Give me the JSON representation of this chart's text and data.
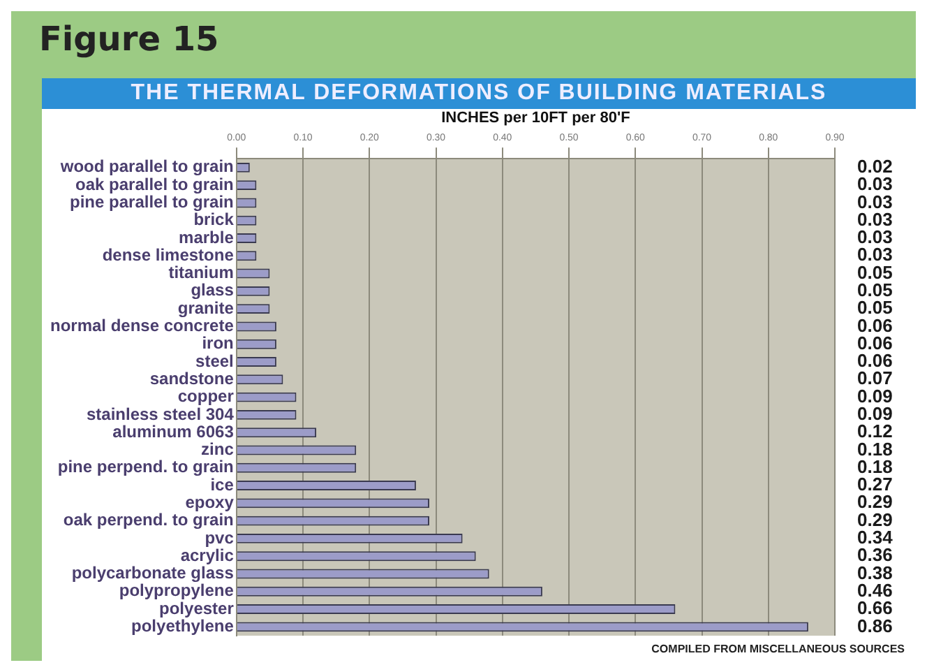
{
  "chart_data": {
    "type": "bar",
    "orientation": "horizontal",
    "title": "Figure 15",
    "subtitle": "THE THERMAL DEFORMATIONS OF BUILDING MATERIALS",
    "xlabel": "INCHES per 10FT per 80'F",
    "categories": [
      "wood parallel to grain",
      "oak parallel to grain",
      "pine parallel to grain",
      "brick",
      "marble",
      "dense limestone",
      "titanium",
      "glass",
      "granite",
      "normal dense concrete",
      "iron",
      "steel",
      "sandstone",
      "copper",
      "stainless steel 304",
      "aluminum 6063",
      "zinc",
      "pine perpend. to grain",
      "ice",
      "epoxy",
      "oak perpend. to grain",
      "pvc",
      "acrylic",
      "polycarbonate glass",
      "polypropylene",
      "polyester",
      "polyethylene"
    ],
    "values": [
      0.02,
      0.03,
      0.03,
      0.03,
      0.03,
      0.03,
      0.05,
      0.05,
      0.05,
      0.06,
      0.06,
      0.06,
      0.07,
      0.09,
      0.09,
      0.12,
      0.18,
      0.18,
      0.27,
      0.29,
      0.29,
      0.34,
      0.36,
      0.38,
      0.46,
      0.66,
      0.86
    ],
    "color": "#9c9cc8",
    "data_labels": true,
    "grid": "x",
    "xlim": [
      0,
      0.9
    ],
    "xticks": [
      {
        "value": 0,
        "label": "0.00"
      },
      {
        "value": 0.1,
        "label": "0.10"
      },
      {
        "value": 0.2,
        "label": "0.20"
      },
      {
        "value": 0.3,
        "label": "0.30"
      },
      {
        "value": 0.4,
        "label": "0.40"
      },
      {
        "value": 0.5,
        "label": "0.50"
      },
      {
        "value": 0.6,
        "label": "0.60"
      },
      {
        "value": 0.7,
        "label": "0.70"
      },
      {
        "value": 0.8,
        "label": "0.80"
      },
      {
        "value": 0.9,
        "label": "0.90"
      }
    ],
    "annotations": [
      "COMPILED FROM MISCELLANEOUS SOURCES"
    ]
  }
}
